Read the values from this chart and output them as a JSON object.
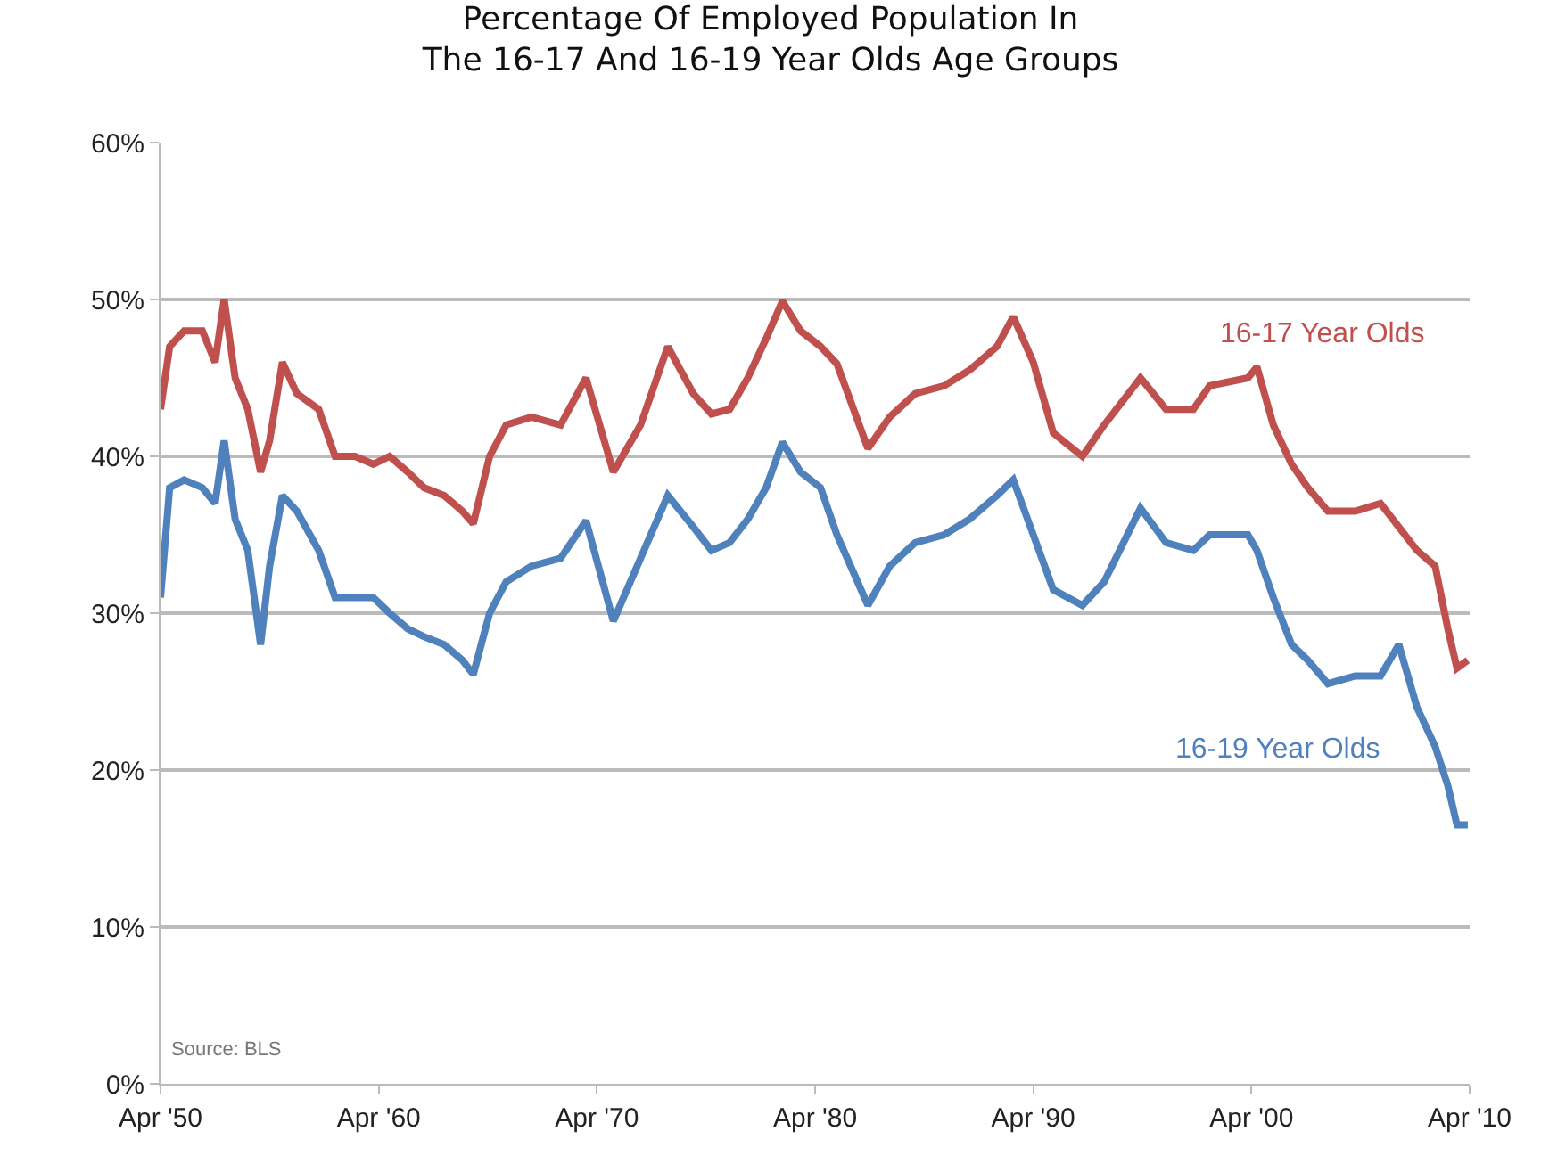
{
  "chart_data": {
    "type": "line",
    "title": "Percentage Of Employed Population In\nThe 16-17 And 16-19 Year Olds Age Groups",
    "x": [
      "1950-04",
      "1950-09",
      "1951-05",
      "1952-03",
      "1952-10",
      "1953-03",
      "1953-09",
      "1954-04",
      "1954-11",
      "1955-04",
      "1955-11",
      "1956-07",
      "1957-07",
      "1958-04",
      "1959-03",
      "1960-01",
      "1960-10",
      "1961-08",
      "1962-05",
      "1963-04",
      "1964-02",
      "1964-08",
      "1965-05",
      "1966-02",
      "1967-04",
      "1968-08",
      "1969-10",
      "1971-01",
      "1972-04",
      "1973-07",
      "1974-09",
      "1975-07",
      "1976-05",
      "1977-03",
      "1978-01",
      "1978-10",
      "1979-08",
      "1980-07",
      "1981-04",
      "1982-09",
      "1983-09",
      "1984-11",
      "1986-03",
      "1987-05",
      "1988-08",
      "1989-05",
      "1990-04",
      "1991-03",
      "1992-07",
      "1993-07",
      "1995-03",
      "1996-05",
      "1997-08",
      "1998-05",
      "2000-02",
      "2000-07",
      "2001-04",
      "2002-02",
      "2002-11",
      "2003-10",
      "2005-01",
      "2006-03",
      "2007-01",
      "2007-11",
      "2008-09",
      "2009-04",
      "2009-09",
      "2010-03"
    ],
    "series": [
      {
        "name": "16-17 Year Olds",
        "color": "#c0504d",
        "values": [
          43,
          47,
          48,
          48,
          46,
          50,
          45,
          43,
          39,
          41,
          46,
          44,
          43,
          40,
          40,
          39.5,
          40,
          39,
          38,
          37.5,
          36.5,
          35.7,
          40,
          42,
          42.5,
          42,
          45,
          39,
          42,
          47,
          44,
          42.7,
          43,
          45,
          47.5,
          49.9,
          48,
          47,
          45.9,
          40.5,
          42.5,
          44,
          44.5,
          45.5,
          47,
          48.9,
          46,
          41.5,
          40,
          42,
          45,
          43,
          43,
          44.5,
          45,
          45.7,
          42,
          39.5,
          38,
          36.5,
          36.5,
          37,
          35.5,
          34,
          33,
          29,
          26.5,
          27
        ]
      },
      {
        "name": "16-19 Year Olds",
        "color": "#4f81bd",
        "values": [
          31,
          38,
          38.5,
          38,
          37,
          41,
          36,
          34,
          28,
          33,
          37.5,
          36.5,
          34,
          31,
          31,
          31,
          30,
          29,
          28.5,
          28,
          27,
          26.1,
          30,
          32,
          33,
          33.5,
          35.9,
          29.5,
          33.5,
          37.5,
          35.5,
          34,
          34.5,
          36,
          38,
          40.9,
          39,
          38,
          35,
          30.5,
          33,
          34.5,
          35,
          36,
          37.5,
          38.5,
          35,
          31.5,
          30.5,
          32,
          36.7,
          34.5,
          34,
          35,
          35,
          34,
          31,
          28,
          27,
          25.5,
          26,
          26,
          28,
          24,
          21.5,
          19,
          16.5,
          16.5
        ]
      }
    ],
    "xlim": [
      "1950-04",
      "2010-04"
    ],
    "xticks": [
      {
        "value": "1950-04",
        "label": "Apr '50"
      },
      {
        "value": "1960-04",
        "label": "Apr '60"
      },
      {
        "value": "1970-04",
        "label": "Apr '70"
      },
      {
        "value": "1980-04",
        "label": "Apr '80"
      },
      {
        "value": "1990-04",
        "label": "Apr '90"
      },
      {
        "value": "2000-04",
        "label": "Apr '00"
      },
      {
        "value": "2010-04",
        "label": "Apr '10"
      }
    ],
    "ylim": [
      0,
      60
    ],
    "yticks": [
      {
        "value": 0,
        "label": "0%"
      },
      {
        "value": 10,
        "label": "10%"
      },
      {
        "value": 20,
        "label": "20%"
      },
      {
        "value": 30,
        "label": "30%"
      },
      {
        "value": 40,
        "label": "40%"
      },
      {
        "value": 50,
        "label": "50%"
      },
      {
        "value": 60,
        "label": "60%"
      }
    ],
    "grid": "y",
    "legend": false,
    "marker": "none",
    "line_style": "solid",
    "annotations": [
      "Source: BLS"
    ]
  }
}
